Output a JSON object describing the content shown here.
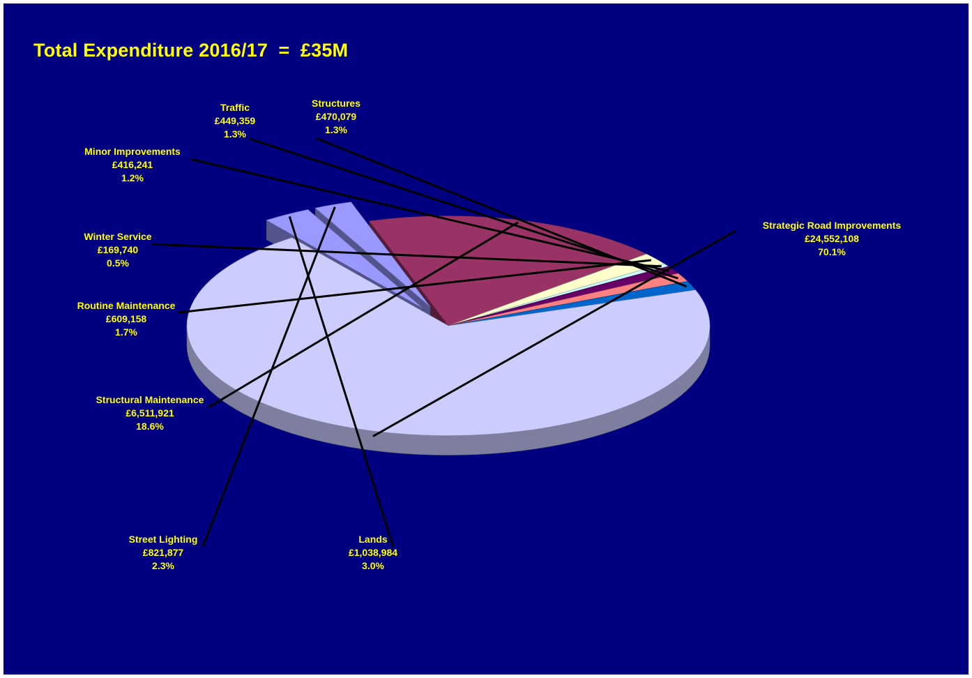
{
  "chart_data": {
    "type": "pie",
    "title": "Total Expenditure 2016/17  =  £35M",
    "slices": [
      {
        "label": "Strategic Road Improvements",
        "amount": "£24,552,108",
        "percent": "70.1%",
        "value": 24552108,
        "color": "#ccccff"
      },
      {
        "label": "Lands",
        "amount": "£1,038,984",
        "percent": "3.0%",
        "value": 1038984,
        "color": "#9999ff"
      },
      {
        "label": "Street Lighting",
        "amount": "£821,877",
        "percent": "2.3%",
        "value": 821877,
        "color": "#9999ff"
      },
      {
        "label": "Structural Maintenance",
        "amount": "£6,511,921",
        "percent": "18.6%",
        "value": 6511921,
        "color": "#993366"
      },
      {
        "label": "Routine Maintenance",
        "amount": "£609,158",
        "percent": "1.7%",
        "value": 609158,
        "color": "#ffffcc"
      },
      {
        "label": "Winter Service",
        "amount": "£169,740",
        "percent": "0.5%",
        "value": 169740,
        "color": "#ccffff"
      },
      {
        "label": "Minor Improvements",
        "amount": "£416,241",
        "percent": "1.2%",
        "value": 416241,
        "color": "#660066"
      },
      {
        "label": "Traffic",
        "amount": "£449,359",
        "percent": "1.3%",
        "value": 449359,
        "color": "#ff8080"
      },
      {
        "label": "Structures",
        "amount": "£470,079",
        "percent": "1.3%",
        "value": 470079,
        "color": "#0066cc"
      }
    ],
    "legend": "none",
    "style": "3d-exploded"
  }
}
